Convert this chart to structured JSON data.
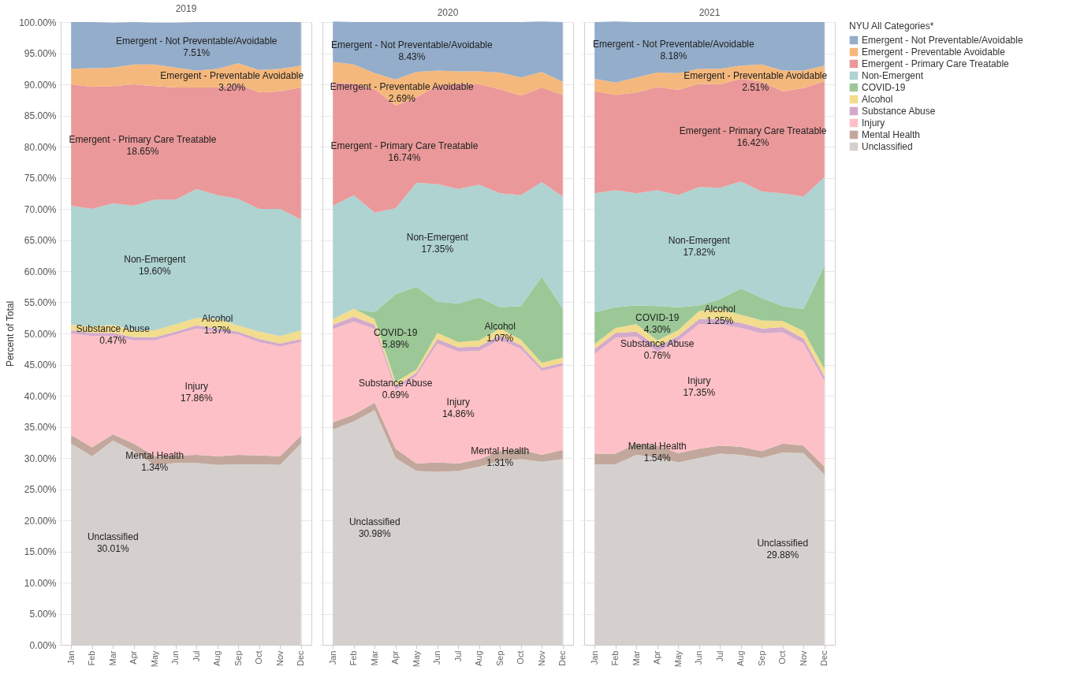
{
  "chart_data": [
    {
      "type": "area",
      "title": "2019",
      "ylabel": "Percent of Total",
      "stacked": true,
      "grid": true,
      "legend": false,
      "categories": [
        "Jan",
        "Feb",
        "Mar",
        "Apr",
        "May",
        "Jun",
        "Jul",
        "Aug",
        "Sep",
        "Oct",
        "Nov",
        "Dec"
      ],
      "ylim": [
        0,
        100
      ],
      "yticks": [
        {
          "value": 0,
          "label": "0.00%"
        },
        {
          "value": 5,
          "label": "5.00%"
        },
        {
          "value": 10,
          "label": "10.00%"
        },
        {
          "value": 15,
          "label": "15.00%"
        },
        {
          "value": 20,
          "label": "20.00%"
        },
        {
          "value": 25,
          "label": "25.00%"
        },
        {
          "value": 30,
          "label": "30.00%"
        },
        {
          "value": 35,
          "label": "35.00%"
        },
        {
          "value": 40,
          "label": "40.00%"
        },
        {
          "value": 45,
          "label": "45.00%"
        },
        {
          "value": 50,
          "label": "50.00%"
        },
        {
          "value": 55,
          "label": "55.00%"
        },
        {
          "value": 60,
          "label": "60.00%"
        },
        {
          "value": 65,
          "label": "65.00%"
        },
        {
          "value": 70,
          "label": "70.00%"
        },
        {
          "value": 75,
          "label": "75.00%"
        },
        {
          "value": 80,
          "label": "80.00%"
        },
        {
          "value": 85,
          "label": "85.00%"
        },
        {
          "value": 90,
          "label": "90.00%"
        },
        {
          "value": 95,
          "label": "95.00%"
        },
        {
          "value": 100,
          "label": "100.00%"
        }
      ],
      "series": [
        {
          "name": "Unclassified",
          "color": "#d5d0ce",
          "values": [
            32.3,
            30.3,
            32.8,
            31.1,
            28.8,
            29.2,
            29.2,
            28.9,
            29.0,
            29.0,
            28.9,
            32.3
          ]
        },
        {
          "name": "Mental Health",
          "color": "#c2a89c",
          "values": [
            1.4,
            1.4,
            1.0,
            1.2,
            1.5,
            1.2,
            1.3,
            1.4,
            1.5,
            1.4,
            1.4,
            1.3
          ]
        },
        {
          "name": "Injury",
          "color": "#fdc0c6",
          "values": [
            16.3,
            17.9,
            15.8,
            16.6,
            18.6,
            19.4,
            20.3,
            20.0,
            19.3,
            18.2,
            17.6,
            15.0
          ]
        },
        {
          "name": "Substance Abuse",
          "color": "#d4aacb",
          "values": [
            0.5,
            0.5,
            0.5,
            0.5,
            0.5,
            0.5,
            0.5,
            0.5,
            0.5,
            0.5,
            0.5,
            0.5
          ]
        },
        {
          "name": "Alcohol",
          "color": "#f2dc8e",
          "values": [
            0.9,
            1.0,
            1.3,
            1.1,
            1.1,
            1.2,
            1.2,
            1.5,
            1.0,
            1.2,
            1.2,
            1.4
          ]
        },
        {
          "name": "Non-Emergent",
          "color": "#aed3d1",
          "values": [
            19.1,
            18.9,
            19.5,
            20.0,
            21.0,
            20.0,
            20.7,
            19.9,
            20.3,
            19.7,
            20.4,
            17.8
          ]
        },
        {
          "name": "Emergent - Primary Care Treatable",
          "color": "#ea9899",
          "values": [
            19.5,
            19.6,
            18.8,
            19.5,
            18.2,
            18.0,
            16.3,
            17.3,
            18.4,
            18.7,
            18.9,
            21.2
          ]
        },
        {
          "name": "Emergent - Preventable Avoidable",
          "color": "#f5b87c",
          "values": [
            2.5,
            3.0,
            3.0,
            3.2,
            3.5,
            3.2,
            2.7,
            3.0,
            3.4,
            3.6,
            3.6,
            3.5
          ]
        },
        {
          "name": "Emergent - Not Preventable/Avoidable",
          "color": "#93adca",
          "values": [
            7.5,
            7.4,
            7.2,
            6.8,
            6.7,
            7.2,
            7.8,
            7.5,
            6.6,
            7.7,
            7.5,
            7.0
          ]
        }
      ],
      "annotations": [
        "7.51%",
        "3.20%",
        "18.65%",
        "19.60%",
        "1.37%",
        "0.47%",
        "17.86%",
        "1.34%",
        "30.01%"
      ]
    },
    {
      "type": "area",
      "title": "2020",
      "stacked": true,
      "grid": true,
      "legend": false,
      "tick_labels": "x",
      "categories": [
        "Jan",
        "Feb",
        "Mar",
        "Apr",
        "May",
        "Jun",
        "Jul",
        "Aug",
        "Sep",
        "Oct",
        "Nov",
        "Dec"
      ],
      "ylim": [
        0,
        100
      ],
      "yticks": [
        0,
        5,
        10,
        15,
        20,
        25,
        30,
        35,
        40,
        45,
        50,
        55,
        60,
        65,
        70,
        75,
        80,
        85,
        90,
        95,
        100
      ],
      "series": [
        {
          "name": "Unclassified",
          "color": "#d5d0ce",
          "values": [
            34.6,
            35.9,
            37.7,
            30.0,
            27.9,
            27.8,
            27.9,
            28.6,
            29.5,
            29.8,
            29.4,
            29.8
          ]
        },
        {
          "name": "Mental Health",
          "color": "#c2a89c",
          "values": [
            1.1,
            1.1,
            1.2,
            1.5,
            1.2,
            1.5,
            1.2,
            1.2,
            1.6,
            1.6,
            1.1,
            1.5
          ]
        },
        {
          "name": "Injury",
          "color": "#fdc0c6",
          "values": [
            15.0,
            14.9,
            11.8,
            9.4,
            14.1,
            19.1,
            18.0,
            17.4,
            17.9,
            16.1,
            13.5,
            13.5
          ]
        },
        {
          "name": "Substance Abuse",
          "color": "#d4aacb",
          "values": [
            0.7,
            0.8,
            0.7,
            0.6,
            0.5,
            0.7,
            0.7,
            0.7,
            0.7,
            0.6,
            0.5,
            0.5
          ]
        },
        {
          "name": "Alcohol",
          "color": "#f2dc8e",
          "values": [
            0.9,
            1.3,
            0.9,
            0.7,
            0.5,
            1.0,
            0.8,
            1.0,
            1.1,
            0.9,
            0.8,
            0.8
          ]
        },
        {
          "name": "COVID-19",
          "color": "#9bc896",
          "values": [
            0,
            0,
            1.1,
            14.1,
            13.3,
            5.0,
            6.2,
            6.9,
            3.4,
            5.4,
            13.8,
            7.9
          ]
        },
        {
          "name": "Non-Emergent",
          "color": "#aed3d1",
          "values": [
            18.2,
            18.2,
            16.0,
            13.8,
            16.7,
            18.9,
            18.4,
            18.1,
            18.3,
            17.8,
            15.2,
            18.0
          ]
        },
        {
          "name": "Emergent - Primary Care Treatable",
          "color": "#ea9899",
          "values": [
            19.8,
            17.9,
            19.8,
            16.5,
            13.7,
            15.8,
            16.9,
            16.1,
            16.7,
            16.0,
            15.2,
            16.3
          ]
        },
        {
          "name": "Emergent - Preventable Avoidable",
          "color": "#f5b87c",
          "values": [
            3.3,
            3.1,
            2.6,
            4.2,
            4.1,
            2.4,
            2.0,
            2.1,
            2.7,
            2.9,
            2.5,
            2.1
          ]
        },
        {
          "name": "Emergent - Not Preventable/Avoidable",
          "color": "#93adca",
          "values": [
            6.5,
            6.8,
            8.2,
            9.2,
            8.0,
            7.8,
            7.9,
            7.9,
            8.1,
            8.9,
            8.1,
            9.6
          ]
        }
      ],
      "annotations": [
        "8.43%",
        "2.69%",
        "16.74%",
        "17.35%",
        "5.89%",
        "1.07%",
        "0.69%",
        "14.86%",
        "1.31%",
        "30.98%"
      ]
    },
    {
      "type": "area",
      "title": "2021",
      "stacked": true,
      "grid": true,
      "legend": "right",
      "legend_title": "NYU All Categories*",
      "tick_labels": "x",
      "categories": [
        "Jan",
        "Feb",
        "Mar",
        "Apr",
        "May",
        "Jun",
        "Jul",
        "Aug",
        "Sep",
        "Oct",
        "Nov",
        "Dec"
      ],
      "ylim": [
        0,
        100
      ],
      "yticks": [
        0,
        5,
        10,
        15,
        20,
        25,
        30,
        35,
        40,
        45,
        50,
        55,
        60,
        65,
        70,
        75,
        80,
        85,
        90,
        95,
        100
      ],
      "series": [
        {
          "name": "Unclassified",
          "color": "#d5d0ce",
          "values": [
            29.0,
            29.0,
            30.5,
            30.1,
            29.3,
            30.0,
            30.7,
            30.5,
            30.0,
            30.9,
            30.8,
            27.3
          ]
        },
        {
          "name": "Mental Health",
          "color": "#c2a89c",
          "values": [
            1.7,
            1.7,
            1.8,
            1.9,
            1.5,
            1.5,
            1.3,
            1.3,
            1.1,
            1.4,
            1.2,
            1.3
          ]
        },
        {
          "name": "Injury",
          "color": "#fdc0c6",
          "values": [
            16.0,
            18.6,
            17.2,
            15.1,
            18.0,
            20.0,
            19.5,
            19.1,
            18.9,
            17.9,
            16.4,
            13.7
          ]
        },
        {
          "name": "Substance Abuse",
          "color": "#d4aacb",
          "values": [
            0.8,
            0.8,
            0.8,
            0.8,
            0.8,
            0.8,
            0.8,
            0.8,
            0.8,
            0.8,
            0.8,
            0.8
          ]
        },
        {
          "name": "Alcohol",
          "color": "#f2dc8e",
          "values": [
            0.8,
            0.8,
            1.2,
            1.0,
            0.9,
            1.3,
            1.6,
            1.3,
            1.3,
            1.0,
            1.2,
            1.2
          ]
        },
        {
          "name": "COVID-19",
          "color": "#9bc896",
          "values": [
            5.1,
            3.3,
            3.0,
            5.5,
            3.7,
            0.9,
            1.6,
            4.2,
            3.6,
            2.4,
            3.5,
            16.6
          ]
        },
        {
          "name": "Non-Emergent",
          "color": "#aed3d1",
          "values": [
            19.1,
            18.8,
            18.0,
            18.6,
            18.0,
            19.0,
            17.9,
            17.2,
            17.1,
            18.1,
            18.1,
            14.2
          ]
        },
        {
          "name": "Emergent - Primary Care Treatable",
          "color": "#ea9899",
          "values": [
            16.4,
            15.3,
            16.2,
            16.6,
            16.9,
            16.6,
            16.6,
            16.5,
            17.6,
            16.4,
            17.4,
            15.4
          ]
        },
        {
          "name": "Emergent - Preventable Avoidable",
          "color": "#f5b87c",
          "values": [
            2.0,
            2.0,
            2.4,
            2.3,
            2.7,
            2.4,
            2.5,
            2.1,
            2.8,
            3.3,
            2.8,
            2.5
          ]
        },
        {
          "name": "Emergent - Not Preventable/Avoidable",
          "color": "#93adca",
          "values": [
            9.1,
            9.8,
            8.9,
            8.1,
            8.2,
            7.5,
            7.5,
            7.0,
            6.8,
            7.8,
            7.8,
            7.0
          ]
        }
      ],
      "annotations": [
        "8.18%",
        "2.51%",
        "16.42%",
        "17.82%",
        "4.30%",
        "1.25%",
        "0.76%",
        "17.35%",
        "1.54%",
        "29.88%"
      ]
    }
  ]
}
